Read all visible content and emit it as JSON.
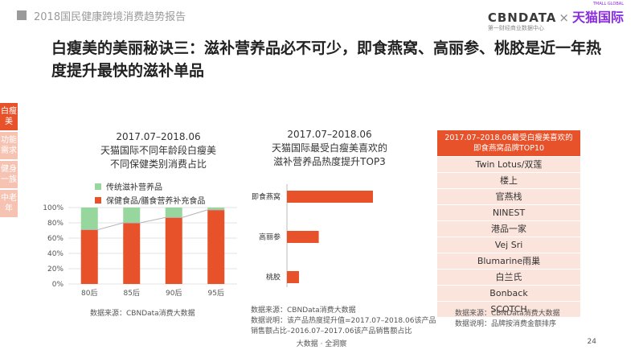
{
  "header": {
    "report_title": "2018国民健康跨境消费趋势报告",
    "logo_cbn": "CBNDATA",
    "logo_x": "×",
    "logo_tmall": "天猫国际",
    "logo_tmall_en": "TMALL GLOBAL",
    "logo_sub": "第一财经商业数据中心"
  },
  "headline": "白瘦美的美丽秘诀三：滋补营养品必不可少，即食燕窝、高丽参、桃胶是近一年热度提升最快的滋补单品",
  "side_nav": {
    "items": [
      {
        "label": "白瘦美",
        "active": true
      },
      {
        "label": "功能需求",
        "active": false
      },
      {
        "label": "健身一族",
        "active": false
      },
      {
        "label": "中老年",
        "active": false
      }
    ]
  },
  "colors": {
    "accent": "#e8522a",
    "traditional": "#97d79e",
    "light_accent": "#fbe4dc",
    "line": "#cccccc"
  },
  "left_panel": {
    "date": "2017.07–2018.06",
    "title_line1": "天猫国际不同年龄段白瘦美",
    "title_line2": "不同保健类别消费占比",
    "source": "数据来源：CBNData消费大数据"
  },
  "middle_panel": {
    "date": "2017.07–2018.06",
    "title_line1": "天猫国际最受白瘦美喜欢的",
    "title_line2": "滋补营养品热度提升TOP3",
    "source_line1": "数据来源：CBNData消费大数据",
    "source_line2": "数据说明：该产品热度提升值=2017.07–2018.06该产品",
    "source_line3": "销售额占比–2016.07–2017.06该产品销售额占比"
  },
  "right_panel": {
    "header_line1": "2017.07–2018.06最受白瘦美喜欢的",
    "header_line2": "即食燕窝品牌TOP10",
    "brands": [
      "Twin Lotus/双莲",
      "楼上",
      "官燕栈",
      "NINEST",
      "港品一家",
      "Vej Sri",
      "Blumarine雨巢",
      "白兰氏",
      "Bonback",
      "SCOTCH"
    ],
    "source_line1": "数据来源：CBNData消费大数据",
    "source_line2": "数据说明：品牌按消费金额排序"
  },
  "footer": {
    "center": "大数据 · 全洞察",
    "page": "24"
  },
  "chart_data": [
    {
      "type": "bar",
      "stacked": true,
      "categories": [
        "80后",
        "85后",
        "90后",
        "95后"
      ],
      "series": [
        {
          "name": "保健食品/膳食营养补充食品",
          "values": [
            0.71,
            0.8,
            0.87,
            0.97
          ]
        },
        {
          "name": "传统滋补营养品",
          "values": [
            0.29,
            0.2,
            0.13,
            0.03
          ]
        }
      ],
      "trend_line": "connects top of 保健食品 segments",
      "yticks": [
        "0%",
        "20%",
        "40%",
        "60%",
        "80%",
        "100%"
      ],
      "ylim": [
        0,
        1
      ],
      "grid": true,
      "legend": "top-left"
    },
    {
      "type": "bar",
      "orientation": "horizontal",
      "categories": [
        "即食燕窝",
        "高丽参",
        "桃胶"
      ],
      "values": [
        1.0,
        0.37,
        0.14
      ],
      "xaxis_visible": false
    }
  ]
}
